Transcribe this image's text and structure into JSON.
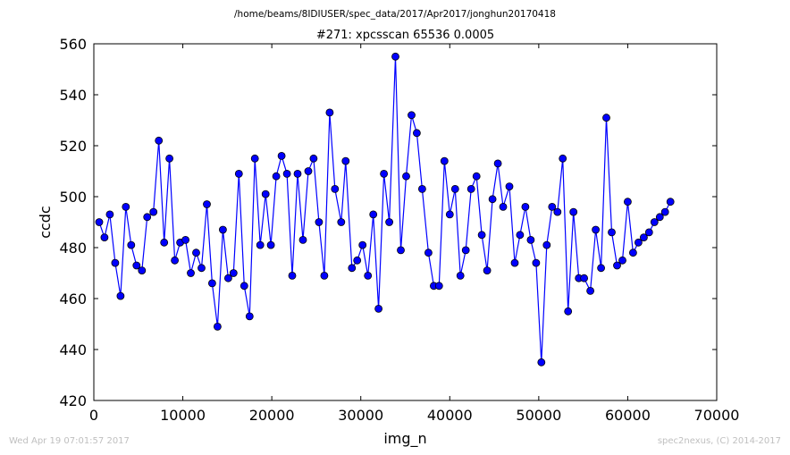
{
  "footer": {
    "timestamp": "Wed Apr 19 07:01:57 2017",
    "credit": "spec2nexus, (C) 2014-2017"
  },
  "chart_data": {
    "type": "line",
    "suptitle": "/home/beams/8IDIUSER/spec_data/2017/Apr2017/jonghun20170418",
    "title": "#271: xpcsscan 65536 0.0005",
    "xlabel": "img_n",
    "ylabel": "ccdc",
    "xlim": [
      0,
      70000
    ],
    "ylim": [
      420,
      560
    ],
    "xticks": [
      0,
      10000,
      20000,
      30000,
      40000,
      50000,
      60000,
      70000
    ],
    "yticks": [
      420,
      440,
      460,
      480,
      500,
      520,
      540,
      560
    ],
    "grid": false,
    "legend": "none",
    "line_color": "#0000ff",
    "marker_color": "#0000ff",
    "series": [
      {
        "x": [
          600,
          1200,
          1800,
          2400,
          3000,
          3600,
          4200,
          4800,
          5400,
          6000,
          6700,
          7300,
          7900,
          8500,
          9100,
          9700,
          10300,
          10900,
          11500,
          12100,
          12700,
          13300,
          13900,
          14500,
          15100,
          15700,
          16300,
          16900,
          17500,
          18100,
          18700,
          19300,
          19900,
          20500,
          21100,
          21700,
          22300,
          22900,
          23500,
          24100,
          24700,
          25300,
          25900,
          26500,
          27100,
          27800,
          28300,
          29000,
          29600,
          30200,
          30800,
          31400,
          32000,
          32600,
          33200,
          33900,
          34500,
          35100,
          35700,
          36300,
          36900,
          37600,
          38200,
          38800,
          39400,
          40000,
          40600,
          41200,
          41800,
          42400,
          43000,
          43600,
          44200,
          44800,
          45400,
          46000,
          46700,
          47300,
          47900,
          48500,
          49100,
          49700,
          50300,
          50900,
          51500,
          52100,
          52700,
          53300,
          53900,
          54500,
          55100,
          55800,
          56400,
          57000,
          57600,
          58200,
          58800,
          59400,
          60000,
          60600,
          61200,
          61800,
          62400,
          63000,
          63600,
          64200,
          64800
        ],
        "y": [
          490,
          484,
          493,
          474,
          461,
          496,
          481,
          473,
          471,
          492,
          494,
          522,
          482,
          515,
          475,
          482,
          483,
          470,
          478,
          472,
          497,
          466,
          449,
          487,
          468,
          470,
          509,
          465,
          453,
          515,
          481,
          501,
          481,
          508,
          516,
          509,
          469,
          509,
          483,
          510,
          515,
          490,
          469,
          533,
          503,
          490,
          514,
          472,
          475,
          481,
          469,
          493,
          456,
          509,
          490,
          555,
          479,
          508,
          532,
          525,
          503,
          478,
          465,
          465,
          514,
          493,
          503,
          469,
          479,
          503,
          508,
          485,
          471,
          499,
          513,
          496,
          504,
          474,
          485,
          496,
          483,
          474,
          435,
          481,
          496,
          494,
          515,
          455,
          494,
          468,
          468,
          463,
          487,
          472,
          531,
          486,
          473,
          475,
          498,
          478,
          482,
          484,
          486,
          490,
          492,
          494,
          498
        ]
      }
    ]
  }
}
